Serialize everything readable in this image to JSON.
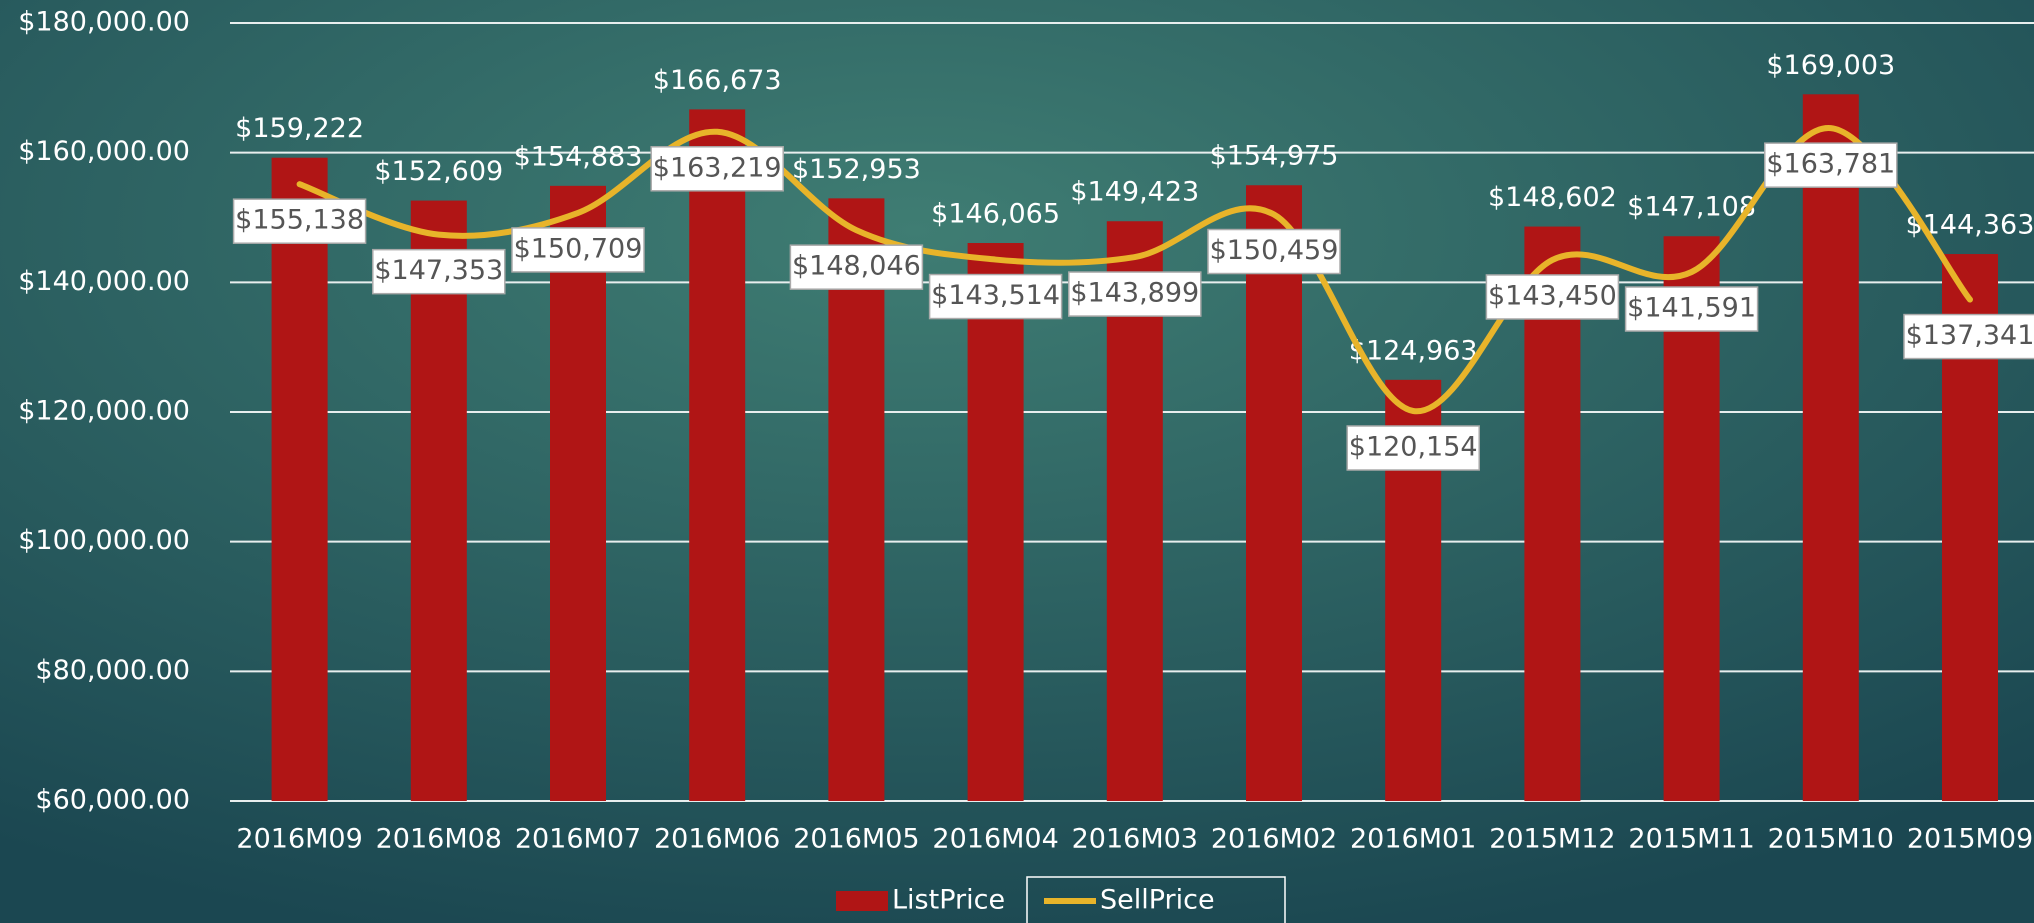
{
  "chart_data": {
    "type": "bar",
    "categories": [
      "2016M09",
      "2016M08",
      "2016M07",
      "2016M06",
      "2016M05",
      "2016M04",
      "2016M03",
      "2016M02",
      "2016M01",
      "2015M12",
      "2015M11",
      "2015M10",
      "2015M09"
    ],
    "series": [
      {
        "name": "ListPrice",
        "type": "bar",
        "color": "#b01515",
        "values": [
          159222,
          152609,
          154883,
          166673,
          152953,
          146065,
          149423,
          154975,
          124963,
          148602,
          147108,
          169003,
          144363
        ],
        "value_labels": [
          "$159,222",
          "$152,609",
          "$154,883",
          "$166,673",
          "$152,953",
          "$146,065",
          "$149,423",
          "$154,975",
          "$124,963",
          "$148,602",
          "$147,108",
          "$169,003",
          "$144,363"
        ]
      },
      {
        "name": "SellPrice",
        "type": "line",
        "color": "#e8b42a",
        "values": [
          155138,
          147353,
          150709,
          163219,
          148046,
          143514,
          143899,
          150459,
          120154,
          143450,
          141591,
          163781,
          137341
        ],
        "value_labels": [
          "$155,138",
          "$147,353",
          "$150,709",
          "$163,219",
          "$148,046",
          "$143,514",
          "$143,899",
          "$150,459",
          "$120,154",
          "$143,450",
          "$141,591",
          "$163,781",
          "$137,341"
        ]
      }
    ],
    "ylim": [
      60000,
      180000
    ],
    "yticks": [
      {
        "value": 60000,
        "label": "$60,000.00"
      },
      {
        "value": 80000,
        "label": "$80,000.00"
      },
      {
        "value": 100000,
        "label": "$100,000.00"
      },
      {
        "value": 120000,
        "label": "$120,000.00"
      },
      {
        "value": 140000,
        "label": "$140,000.00"
      },
      {
        "value": 160000,
        "label": "$160,000.00"
      },
      {
        "value": 180000,
        "label": "$180,000.00"
      }
    ],
    "grid": true,
    "legend": "bottom"
  }
}
